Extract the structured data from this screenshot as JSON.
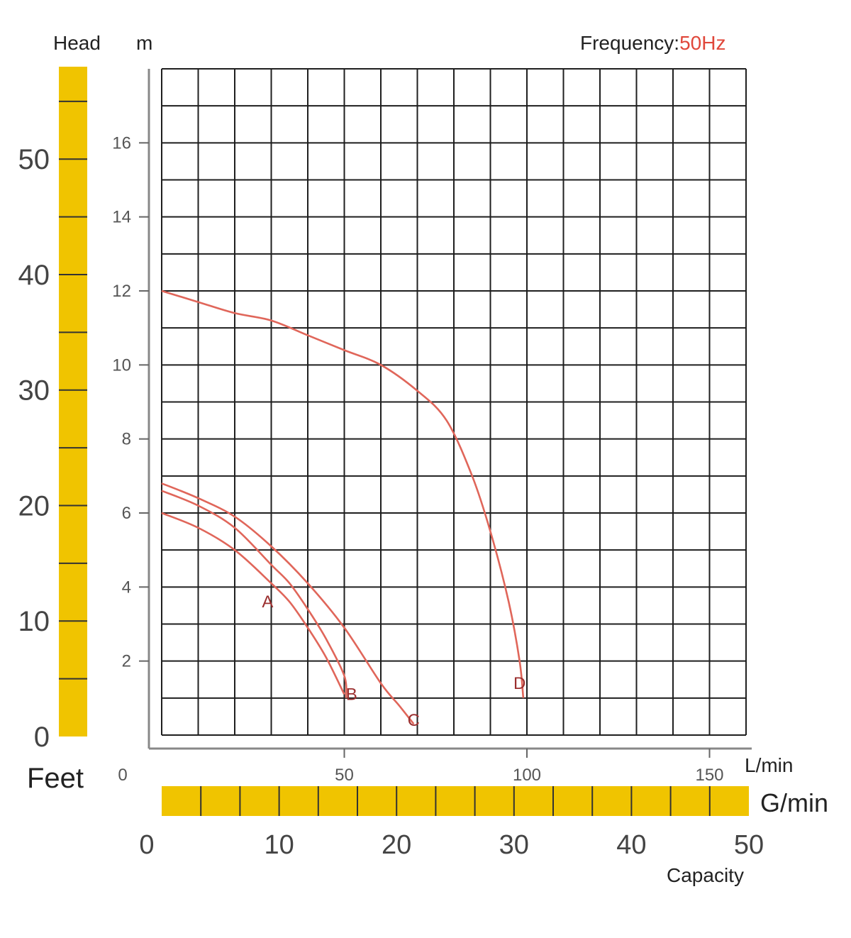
{
  "header": {
    "left_label": "Head",
    "unit_m": "m",
    "frequency_label": "Frequency:",
    "frequency_value": "50Hz"
  },
  "axes": {
    "feet_label": "Feet",
    "lmin_label": "L/min",
    "gmin_label": "G/min",
    "capacity_label": "Capacity"
  },
  "colors": {
    "scale_bar": "#f0c400",
    "curve": "#e0665a",
    "frequency_value": "#e0473a"
  },
  "chart_data": {
    "type": "line",
    "title": "",
    "xlabel": "Capacity",
    "ylabel": "Head",
    "x_unit": "L/min",
    "y_unit": "m",
    "xlim": [
      0,
      160
    ],
    "ylim": [
      0,
      18
    ],
    "grid": true,
    "y_ticks": [
      2,
      4,
      6,
      8,
      10,
      12,
      14,
      16
    ],
    "x_ticks_lmin": [
      0,
      50,
      100,
      150
    ],
    "feet_ticks": [
      0,
      10,
      20,
      30,
      40,
      50
    ],
    "gmin_ticks": [
      0,
      10,
      20,
      30,
      40,
      50
    ],
    "series": [
      {
        "name": "A",
        "label_at": [
          29,
          3.6
        ],
        "points": [
          [
            0,
            6.0
          ],
          [
            10,
            5.6
          ],
          [
            20,
            5.0
          ],
          [
            30,
            4.1
          ],
          [
            35,
            3.6
          ],
          [
            40,
            2.9
          ],
          [
            45,
            2.1
          ],
          [
            50,
            1.1
          ]
        ]
      },
      {
        "name": "B",
        "label_at": [
          52,
          1.1
        ],
        "points": [
          [
            0,
            6.6
          ],
          [
            10,
            6.2
          ],
          [
            20,
            5.6
          ],
          [
            30,
            4.6
          ],
          [
            35,
            4.1
          ],
          [
            40,
            3.4
          ],
          [
            45,
            2.6
          ],
          [
            50,
            1.6
          ],
          [
            50.5,
            1.0
          ]
        ]
      },
      {
        "name": "C",
        "label_at": [
          69,
          0.4
        ],
        "points": [
          [
            0,
            6.8
          ],
          [
            10,
            6.4
          ],
          [
            20,
            5.9
          ],
          [
            30,
            5.1
          ],
          [
            40,
            4.1
          ],
          [
            50,
            2.9
          ],
          [
            60,
            1.4
          ],
          [
            65,
            0.8
          ],
          [
            69,
            0.3
          ]
        ]
      },
      {
        "name": "D",
        "label_at": [
          98,
          1.4
        ],
        "points": [
          [
            0,
            12.0
          ],
          [
            10,
            11.7
          ],
          [
            20,
            11.4
          ],
          [
            30,
            11.2
          ],
          [
            40,
            10.8
          ],
          [
            50,
            10.4
          ],
          [
            60,
            10.0
          ],
          [
            70,
            9.3
          ],
          [
            78,
            8.5
          ],
          [
            85,
            7.0
          ],
          [
            90,
            5.5
          ],
          [
            95,
            3.6
          ],
          [
            98,
            2.0
          ],
          [
            99,
            1.0
          ]
        ]
      }
    ]
  }
}
